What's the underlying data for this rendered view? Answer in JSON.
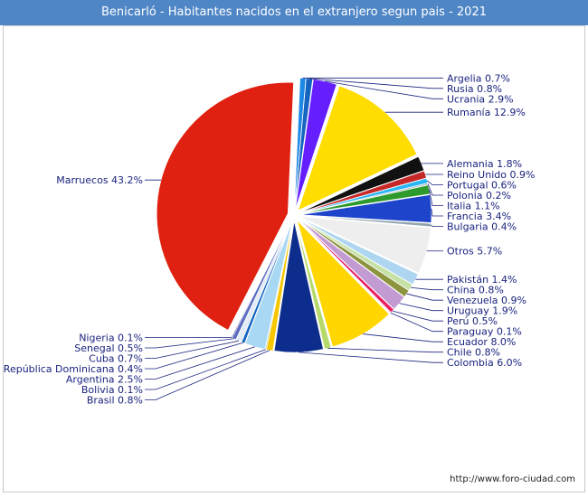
{
  "chart_data": {
    "type": "pie",
    "title": "Benicarló - Habitantes nacidos en el extranjero segun pais - 2021",
    "slices": [
      {
        "label": "Rusia",
        "value_text": "0.8%",
        "value": 0.8,
        "color": "#1565c0",
        "exploded": true
      },
      {
        "label": "Ucrania",
        "value_text": "2.9%",
        "value": 2.9,
        "color": "#651fff",
        "exploded": true
      },
      {
        "label": "Rumanía",
        "value_text": "12.9%",
        "value": 12.9,
        "color": "#ffdd00",
        "exploded": true
      },
      {
        "label": "Alemania",
        "value_text": "1.8%",
        "value": 1.8,
        "color": "#111111",
        "exploded": true
      },
      {
        "label": "Reino Unido",
        "value_text": "0.9%",
        "value": 0.9,
        "color": "#c62828",
        "exploded": true
      },
      {
        "label": "Portugal",
        "value_text": "0.6%",
        "value": 0.6,
        "color": "#29b6f6",
        "exploded": true
      },
      {
        "label": "Polonia",
        "value_text": "0.2%",
        "value": 0.2,
        "color": "#b0bec5",
        "exploded": true
      },
      {
        "label": "Italia",
        "value_text": "1.1%",
        "value": 1.1,
        "color": "#2e9a2e",
        "exploded": true
      },
      {
        "label": "Francia",
        "value_text": "3.4%",
        "value": 3.4,
        "color": "#1e44cc",
        "exploded": true
      },
      {
        "label": "Bulgaria",
        "value_text": "0.4%",
        "value": 0.4,
        "color": "#90a4ae",
        "exploded": true
      },
      {
        "label": "Otros",
        "value_text": "5.7%",
        "value": 5.7,
        "color": "#eeeeee",
        "exploded": true
      },
      {
        "label": "Pakistán",
        "value_text": "1.4%",
        "value": 1.4,
        "color": "#aed6f1",
        "exploded": true
      },
      {
        "label": "China",
        "value_text": "0.8%",
        "value": 0.8,
        "color": "#c5e1a5",
        "exploded": true
      },
      {
        "label": "Venezuela",
        "value_text": "0.9%",
        "value": 0.9,
        "color": "#8d9440",
        "exploded": true
      },
      {
        "label": "Uruguay",
        "value_text": "1.9%",
        "value": 1.9,
        "color": "#c39bd3",
        "exploded": true
      },
      {
        "label": "Perú",
        "value_text": "0.5%",
        "value": 0.5,
        "color": "#e91e63",
        "exploded": true
      },
      {
        "label": "Paraguay",
        "value_text": "0.1%",
        "value": 0.1,
        "color": "#ff8a80",
        "exploded": true
      },
      {
        "label": "Ecuador",
        "value_text": "8.0%",
        "value": 8.0,
        "color": "#ffd600",
        "exploded": true
      },
      {
        "label": "Chile",
        "value_text": "0.8%",
        "value": 0.8,
        "color": "#b5d96a",
        "exploded": true
      },
      {
        "label": "Colombia",
        "value_text": "6.0%",
        "value": 6.0,
        "color": "#0d2d8c",
        "exploded": true
      },
      {
        "label": "Brasil",
        "value_text": "0.8%",
        "value": 0.8,
        "color": "#f6c600",
        "exploded": true
      },
      {
        "label": "Bolivia",
        "value_text": "0.1%",
        "value": 0.1,
        "color": "#558b2f",
        "exploded": true
      },
      {
        "label": "Argentina",
        "value_text": "2.5%",
        "value": 2.5,
        "color": "#a9d8f5",
        "exploded": true
      },
      {
        "label": "República Dominicana",
        "value_text": "0.4%",
        "value": 0.4,
        "color": "#1565c0",
        "exploded": true
      },
      {
        "label": "Cuba",
        "value_text": "0.7%",
        "value": 0.7,
        "color": "#e3ecf5",
        "exploded": true
      },
      {
        "label": "Senegal",
        "value_text": "0.5%",
        "value": 0.5,
        "color": "#5c6bc0",
        "exploded": true
      },
      {
        "label": "Nigeria",
        "value_text": "0.1%",
        "value": 0.1,
        "color": "#1a237e",
        "exploded": true
      },
      {
        "label": "Marruecos",
        "value_text": "43.2%",
        "value": 43.2,
        "color": "#e02010",
        "exploded": true
      },
      {
        "label": "Argelia",
        "value_text": "0.7%",
        "value": 0.7,
        "color": "#1e88e5",
        "exploded": true
      }
    ],
    "legend": "none",
    "label_placement": "leader-lines"
  },
  "footer": {
    "source_url": "http://www.foro-ciudad.com"
  }
}
